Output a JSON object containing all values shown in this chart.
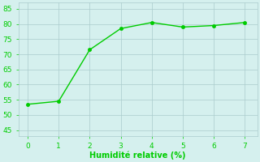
{
  "x": [
    0,
    1,
    2,
    3,
    4,
    5,
    6,
    7
  ],
  "y": [
    53.5,
    54.5,
    71.5,
    78.5,
    80.5,
    79.0,
    79.5,
    80.5
  ],
  "line_color": "#00cc00",
  "marker_color": "#00cc00",
  "background_color": "#d5f0ee",
  "grid_color": "#aacccc",
  "xlabel": "Humidité relative (%)",
  "xlabel_color": "#00cc00",
  "tick_label_color": "#00cc00",
  "xlim": [
    -0.3,
    7.4
  ],
  "ylim": [
    43,
    87
  ],
  "yticks": [
    45,
    50,
    55,
    60,
    65,
    70,
    75,
    80,
    85
  ],
  "xticks": [
    0,
    1,
    2,
    3,
    4,
    5,
    6,
    7
  ],
  "figsize": [
    3.2,
    2.0
  ],
  "dpi": 100
}
